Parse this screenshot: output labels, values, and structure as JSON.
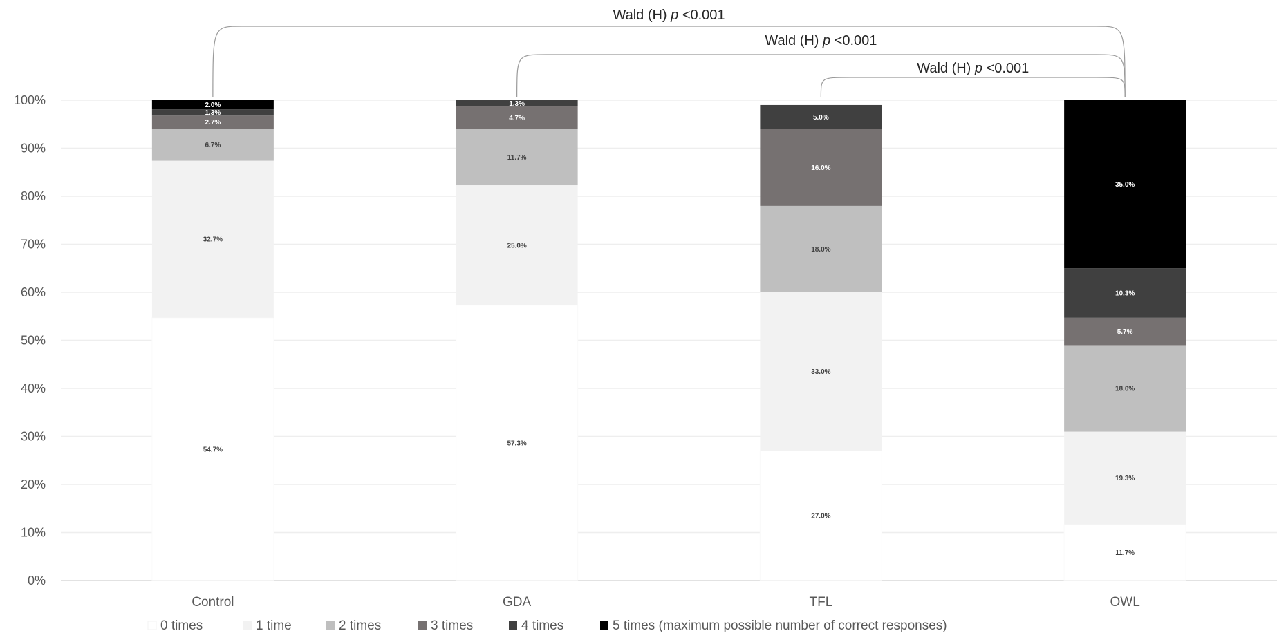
{
  "chart_data": {
    "type": "bar",
    "stacked": true,
    "percent": true,
    "categories": [
      "Control",
      "GDA",
      "TFL",
      "OWL"
    ],
    "series": [
      {
        "name": "0 times",
        "color": "#ffffff",
        "label_color": "#404040",
        "values": [
          54.7,
          57.3,
          27.0,
          11.7
        ]
      },
      {
        "name": "1 time",
        "color": "#f2f2f2",
        "label_color": "#404040",
        "values": [
          32.7,
          25.0,
          33.0,
          19.3
        ]
      },
      {
        "name": "2 times",
        "color": "#bfbfbf",
        "label_color": "#404040",
        "values": [
          6.7,
          11.7,
          18.0,
          18.0
        ]
      },
      {
        "name": "3 times",
        "color": "#767171",
        "label_color": "#ffffff",
        "values": [
          2.7,
          4.7,
          16.0,
          5.7
        ]
      },
      {
        "name": "4 times",
        "color": "#404040",
        "label_color": "#ffffff",
        "values": [
          1.3,
          1.3,
          5.0,
          10.3
        ]
      },
      {
        "name": "5 times (maximum possible number of correct responses)",
        "color": "#000000",
        "label_color": "#ffffff",
        "values": [
          2.0,
          0.0,
          0.0,
          35.0
        ]
      }
    ],
    "data_labels": [
      [
        "54.7%",
        "32.7%",
        "6.7%",
        "2.7%",
        "1.3%",
        "2.0%"
      ],
      [
        "57.3%",
        "25.0%",
        "11.7%",
        "4.7%",
        "1.3%",
        ""
      ],
      [
        "27.0%",
        "33.0%",
        "18.0%",
        "16.0%",
        "5.0%",
        ""
      ],
      [
        "11.7%",
        "19.3%",
        "18.0%",
        "5.7%",
        "10.3%",
        "35.0%"
      ]
    ],
    "y_ticks": [
      "0%",
      "10%",
      "20%",
      "30%",
      "40%",
      "50%",
      "60%",
      "70%",
      "80%",
      "90%",
      "100%"
    ],
    "ylim": [
      0,
      100
    ],
    "grid": true,
    "legend_position": "bottom",
    "annotations": [
      {
        "from": "Control",
        "to": "OWL",
        "prefix": "Wald (H) ",
        "italic": "p",
        "suffix": " <0.001"
      },
      {
        "from": "GDA",
        "to": "OWL",
        "prefix": "Wald (H) ",
        "italic": "p",
        "suffix": " <0.001"
      },
      {
        "from": "TFL",
        "to": "OWL",
        "prefix": "Wald (H) ",
        "italic": "p",
        "suffix": " <0.001"
      }
    ]
  }
}
